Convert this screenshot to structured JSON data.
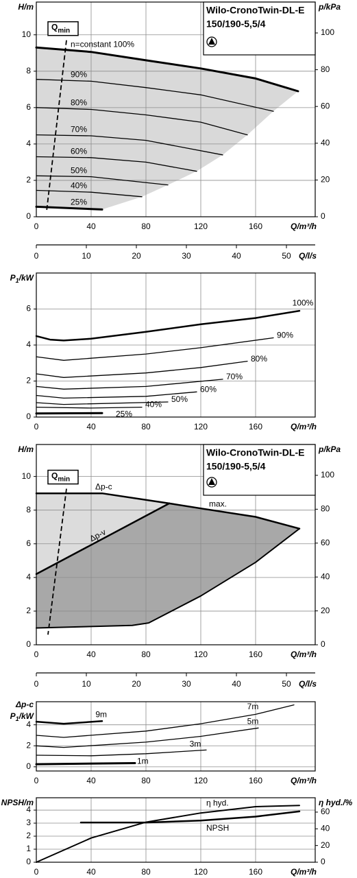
{
  "chart_data": [
    {
      "type": "line",
      "title": "Wilo-CronoTwin-DL-E",
      "subtitle": "150/190-5,5/4",
      "ylabel": "H/m",
      "y2label": "p/kPa",
      "xlabel": "Q/m³/h",
      "x2label": "Q/l/s",
      "xlim": [
        0,
        203.5
      ],
      "xticks": [
        0,
        40,
        80,
        120,
        160
      ],
      "ylim": [
        0,
        11.8
      ],
      "yticks": [
        0,
        2,
        4,
        6,
        8,
        10
      ],
      "y2lim": [
        0,
        116.8
      ],
      "y2ticks": [
        0,
        20,
        40,
        60,
        80,
        100
      ],
      "x2lim": [
        0,
        55.75
      ],
      "x2ticks": [
        0,
        10,
        20,
        30,
        40,
        50
      ],
      "grid": true,
      "area_colors": [
        "#d9d9d9"
      ],
      "qmin": {
        "label": "Q",
        "label_sub": "min",
        "x": [
          22,
          7.5
        ],
        "values": [
          9.7,
          0.3
        ]
      },
      "series": [
        {
          "name": "n=constant 100%",
          "color": "#000000",
          "linewidth": 3,
          "x": [
            0,
            40,
            80,
            120,
            160,
            191
          ],
          "values": [
            9.3,
            9.06,
            8.6,
            8.15,
            7.6,
            6.9
          ]
        },
        {
          "name": "90%",
          "color": "#000000",
          "linewidth": 1.3,
          "x": [
            0,
            40,
            80,
            120,
            173
          ],
          "values": [
            7.55,
            7.45,
            7.1,
            6.7,
            5.8
          ]
        },
        {
          "name": "80%",
          "color": "#000000",
          "linewidth": 1.3,
          "x": [
            0,
            40,
            80,
            120,
            154
          ],
          "values": [
            6.0,
            5.9,
            5.6,
            5.2,
            4.5
          ]
        },
        {
          "name": "70%",
          "color": "#000000",
          "linewidth": 1.3,
          "x": [
            0,
            40,
            80,
            136
          ],
          "values": [
            4.5,
            4.45,
            4.2,
            3.4
          ]
        },
        {
          "name": "60%",
          "color": "#000000",
          "linewidth": 1.3,
          "x": [
            0,
            40,
            80,
            117
          ],
          "values": [
            3.3,
            3.25,
            3.0,
            2.5
          ]
        },
        {
          "name": "50%",
          "color": "#000000",
          "linewidth": 1.3,
          "x": [
            0,
            40,
            96
          ],
          "values": [
            2.25,
            2.2,
            1.75
          ]
        },
        {
          "name": "40%",
          "color": "#000000",
          "linewidth": 1.3,
          "x": [
            0,
            40,
            77
          ],
          "values": [
            1.45,
            1.35,
            1.1
          ]
        },
        {
          "name": "25%",
          "color": "#000000",
          "linewidth": 3,
          "x": [
            0,
            48
          ],
          "values": [
            0.55,
            0.4
          ]
        }
      ]
    },
    {
      "type": "line",
      "ylabel": {
        "text": "P",
        "sub": "1",
        "tail": "/kW"
      },
      "xlabel": "Q/m³/h",
      "xlim": [
        0,
        203.5
      ],
      "xticks": [
        0,
        40,
        80,
        120,
        160
      ],
      "ylim": [
        0,
        8
      ],
      "yticks": [
        0,
        2,
        4,
        6
      ],
      "grid": true,
      "series": [
        {
          "name": "100%",
          "color": "#000000",
          "linewidth": 2.5,
          "x": [
            0,
            10,
            20,
            40,
            80,
            120,
            160,
            192
          ],
          "values": [
            4.5,
            4.3,
            4.25,
            4.35,
            4.73,
            5.15,
            5.5,
            5.9
          ]
        },
        {
          "name": "90%",
          "color": "#000000",
          "linewidth": 1.3,
          "x": [
            0,
            20,
            80,
            120,
            173
          ],
          "values": [
            3.35,
            3.15,
            3.5,
            3.85,
            4.4
          ]
        },
        {
          "name": "80%",
          "color": "#000000",
          "linewidth": 1.3,
          "x": [
            0,
            20,
            80,
            120,
            154
          ],
          "values": [
            2.4,
            2.2,
            2.45,
            2.75,
            3.1
          ]
        },
        {
          "name": "70%",
          "color": "#000000",
          "linewidth": 1.3,
          "x": [
            0,
            20,
            80,
            136
          ],
          "values": [
            1.7,
            1.55,
            1.7,
            2.1
          ]
        },
        {
          "name": "60%",
          "color": "#000000",
          "linewidth": 1.3,
          "x": [
            0,
            20,
            80,
            117
          ],
          "values": [
            1.2,
            1.05,
            1.15,
            1.4
          ]
        },
        {
          "name": "50%",
          "color": "#000000",
          "linewidth": 1.3,
          "x": [
            0,
            20,
            96
          ],
          "values": [
            0.8,
            0.7,
            0.84
          ]
        },
        {
          "name": "40%",
          "color": "#000000",
          "linewidth": 1.3,
          "x": [
            0,
            40,
            77
          ],
          "values": [
            0.55,
            0.5,
            0.55
          ]
        },
        {
          "name": "25%",
          "color": "#000000",
          "linewidth": 3,
          "x": [
            0,
            48
          ],
          "values": [
            0.2,
            0.22
          ]
        }
      ]
    },
    {
      "type": "line",
      "title": "Wilo-CronoTwin-DL-E",
      "subtitle": "150/190-5,5/4",
      "ylabel": "H/m",
      "y2label": "p/kPa",
      "xlabel": "Q/m³/h",
      "x2label": "Q/l/s",
      "xlim": [
        0,
        203.5
      ],
      "xticks": [
        0,
        40,
        80,
        120,
        160
      ],
      "ylim": [
        0,
        11.9
      ],
      "yticks": [
        0,
        2,
        4,
        6,
        8,
        10
      ],
      "y2lim": [
        0,
        118.2
      ],
      "y2ticks": [
        0,
        20,
        40,
        60,
        80,
        100
      ],
      "x2lim": [
        0,
        55.75
      ],
      "x2ticks": [
        0,
        10,
        20,
        30,
        40,
        50
      ],
      "grid": true,
      "area_colors": [
        "#dcdcdc",
        "#a8a8a8"
      ],
      "qmin": {
        "label": "Q",
        "label_sub": "min",
        "x": [
          22,
          8.5
        ],
        "values": [
          9.27,
          0.6
        ]
      },
      "series": [
        {
          "name": "Δp-c",
          "color": "#000000",
          "linewidth": 2.5,
          "x": [
            0,
            48,
            97
          ],
          "values": [
            9,
            9,
            8.4
          ]
        },
        {
          "name": "Δp-v",
          "color": "#000000",
          "linewidth": 2.5,
          "x": [
            0,
            97
          ],
          "values": [
            4.2,
            8.4
          ]
        },
        {
          "name": "max.",
          "color": "#000000",
          "linewidth": 2.5,
          "x": [
            97,
            120,
            160,
            192
          ],
          "values": [
            8.4,
            8.1,
            7.6,
            6.9
          ]
        },
        {
          "color": "#000000",
          "linewidth": 2,
          "x": [
            0,
            70,
            82,
            120,
            160,
            192
          ],
          "values": [
            1.0,
            1.15,
            1.3,
            2.9,
            4.9,
            6.9
          ]
        }
      ]
    },
    {
      "type": "line",
      "ylabel_top": "Δp-c",
      "ylabel": {
        "text": "P",
        "sub": "1",
        "tail": "/kW"
      },
      "xlabel": "Q/m³/h",
      "xlim": [
        0,
        203.5
      ],
      "xticks": [
        0,
        40,
        80,
        120,
        160
      ],
      "ylim": [
        -0.4,
        6.2
      ],
      "yticks": [
        0,
        2,
        4
      ],
      "grid": true,
      "series": [
        {
          "name": "9m",
          "color": "#000000",
          "linewidth": 2.5,
          "x": [
            0,
            20,
            48
          ],
          "values": [
            4.3,
            4.1,
            4.35
          ]
        },
        {
          "name": "7m",
          "color": "#000000",
          "linewidth": 1.3,
          "x": [
            0,
            20,
            80,
            120,
            160,
            188
          ],
          "values": [
            3.0,
            2.8,
            3.4,
            4.1,
            5.0,
            5.9
          ]
        },
        {
          "name": "5m",
          "color": "#000000",
          "linewidth": 1.3,
          "x": [
            0,
            20,
            80,
            120,
            162
          ],
          "values": [
            2.0,
            1.85,
            2.35,
            2.9,
            3.7
          ]
        },
        {
          "name": "3m",
          "color": "#000000",
          "linewidth": 1.3,
          "x": [
            0,
            40,
            80,
            124
          ],
          "values": [
            1.1,
            1.05,
            1.25,
            1.6
          ]
        },
        {
          "name": "1m",
          "color": "#000000",
          "linewidth": 3,
          "x": [
            0,
            72
          ],
          "values": [
            0.25,
            0.35
          ]
        }
      ]
    },
    {
      "type": "line",
      "ylabel": "NPSH/m",
      "y2label": "η hyd./%",
      "xlabel": "Q/m³/h",
      "xlim": [
        0,
        203.5
      ],
      "xticks": [
        0,
        40,
        80,
        120,
        160
      ],
      "ylim": [
        0,
        4.95
      ],
      "yticks": [
        0,
        1,
        2,
        3,
        4
      ],
      "y2lim": [
        0,
        77.2
      ],
      "y2ticks": [
        0,
        20,
        40,
        60
      ],
      "grid": true,
      "series": [
        {
          "name": "η hyd.",
          "color": "#000000",
          "linewidth": 2,
          "axis": "y2",
          "x": [
            0,
            40,
            80,
            120,
            160,
            192
          ],
          "values": [
            0,
            29,
            48,
            59,
            66.5,
            68
          ]
        },
        {
          "name": "NPSH",
          "color": "#000000",
          "linewidth": 2.5,
          "x": [
            32.5,
            80,
            120,
            160,
            192
          ],
          "values": [
            3.05,
            3.05,
            3.2,
            3.5,
            3.9
          ]
        }
      ]
    }
  ]
}
